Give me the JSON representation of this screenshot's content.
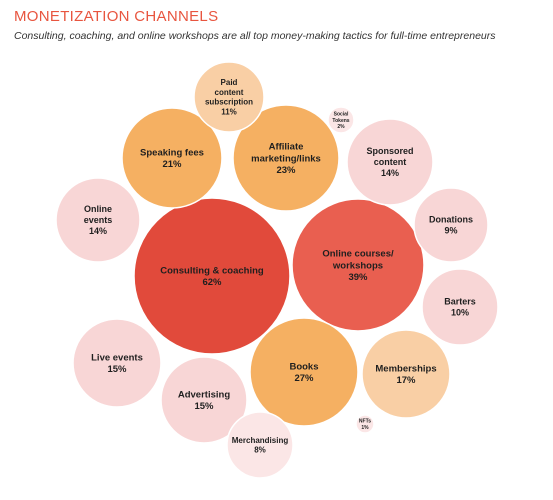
{
  "header": {
    "title": "MONETIZATION CHANNELS",
    "subtitle": "Consulting, coaching, and online workshops are all top money-making tactics for full-time entrepreneurs"
  },
  "colors": {
    "title": "#e8553f",
    "tier_red_dark": "#e14a3b",
    "tier_red_light": "#e95f50",
    "tier_orange": "#f5b062",
    "tier_peach": "#f9cfa5",
    "tier_pink": "#f8d6d6",
    "tier_pink_light": "#fbe6e6"
  },
  "chart_data": {
    "type": "bubble",
    "title": "MONETIZATION CHANNELS",
    "subtitle": "Consulting, coaching, and online workshops are all top money-making tactics for full-time entrepreneurs",
    "unit": "%",
    "series": [
      {
        "label": [
          "Consulting & coaching"
        ],
        "value": 62,
        "display": "62%",
        "color": "#e14a3b"
      },
      {
        "label": [
          "Online courses/",
          "workshops"
        ],
        "value": 39,
        "display": "39%",
        "color": "#e95f50"
      },
      {
        "label": [
          "Books"
        ],
        "value": 27,
        "display": "27%",
        "color": "#f5b062"
      },
      {
        "label": [
          "Affiliate",
          "marketing/links"
        ],
        "value": 23,
        "display": "23%",
        "color": "#f5b062"
      },
      {
        "label": [
          "Speaking fees"
        ],
        "value": 21,
        "display": "21%",
        "color": "#f5b062"
      },
      {
        "label": [
          "Memberships"
        ],
        "value": 17,
        "display": "17%",
        "color": "#f9cfa5"
      },
      {
        "label": [
          "Live events"
        ],
        "value": 15,
        "display": "15%",
        "color": "#f8d6d6"
      },
      {
        "label": [
          "Advertising"
        ],
        "value": 15,
        "display": "15%",
        "color": "#f8d6d6"
      },
      {
        "label": [
          "Online",
          "events"
        ],
        "value": 14,
        "display": "14%",
        "color": "#f8d6d6"
      },
      {
        "label": [
          "Sponsored",
          "content"
        ],
        "value": 14,
        "display": "14%",
        "color": "#f8d6d6"
      },
      {
        "label": [
          "Paid",
          "content",
          "subscription"
        ],
        "value": 11,
        "display": "11%",
        "color": "#f9cfa5"
      },
      {
        "label": [
          "Barters"
        ],
        "value": 10,
        "display": "10%",
        "color": "#f8d6d6"
      },
      {
        "label": [
          "Donations"
        ],
        "value": 9,
        "display": "9%",
        "color": "#f8d6d6"
      },
      {
        "label": [
          "Merchandising"
        ],
        "value": 8,
        "display": "8%",
        "color": "#fbe6e6"
      },
      {
        "label": [
          "Social",
          "Tokens"
        ],
        "value": 2,
        "display": "2%",
        "color": "#fbe6e6"
      },
      {
        "label": [
          "NFTs"
        ],
        "value": 1,
        "display": "1%",
        "color": "#fbe6e6"
      }
    ]
  }
}
